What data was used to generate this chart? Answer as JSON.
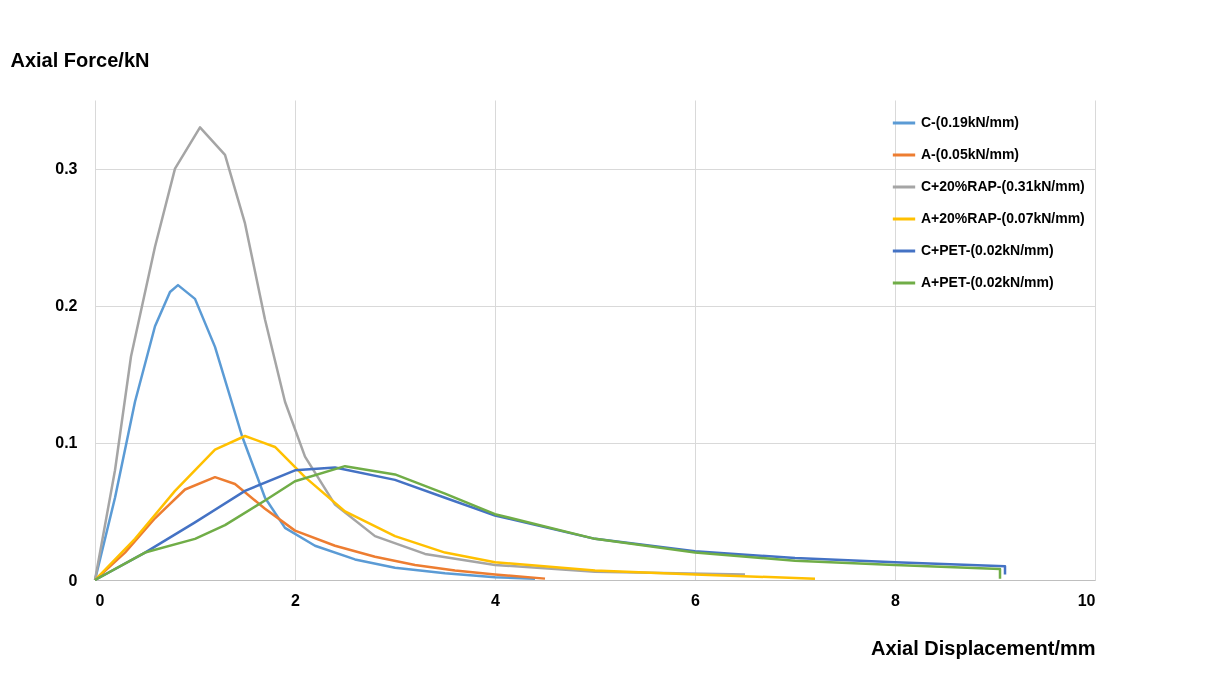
{
  "chart_data": {
    "type": "line",
    "xlabel": "Axial Displacement/mm",
    "ylabel": "Axial Force/kN",
    "xlim": [
      0,
      10
    ],
    "xticks": [
      0,
      2,
      4,
      6,
      8,
      10
    ],
    "ylim": [
      0,
      0.35
    ],
    "yticks": [
      0,
      0.1,
      0.2,
      0.3
    ],
    "grid": true,
    "legend": "top right",
    "marker": "none",
    "line_style": "solid",
    "series": [
      {
        "name": "C-(0.19kN/mm)",
        "color": "#5b9bd5",
        "x": [
          0,
          0.2,
          0.4,
          0.6,
          0.75,
          0.83,
          1.0,
          1.2,
          1.47,
          1.7,
          1.9,
          2.2,
          2.6,
          3.0,
          3.5,
          4.0,
          4.4
        ],
        "values": [
          0,
          0.06,
          0.13,
          0.185,
          0.21,
          0.215,
          0.205,
          0.17,
          0.105,
          0.06,
          0.038,
          0.025,
          0.015,
          0.009,
          0.005,
          0.002,
          0.001
        ]
      },
      {
        "name": "A-(0.05kN/mm)",
        "color": "#ed7d31",
        "x": [
          0,
          0.3,
          0.6,
          0.9,
          1.2,
          1.4,
          1.7,
          2.0,
          2.4,
          2.8,
          3.2,
          3.6,
          4.0,
          4.5
        ],
        "values": [
          0,
          0.02,
          0.045,
          0.066,
          0.075,
          0.07,
          0.052,
          0.036,
          0.025,
          0.017,
          0.011,
          0.007,
          0.004,
          0.001
        ]
      },
      {
        "name": "C+20%RAP-(0.31kN/mm)",
        "color": "#a5a5a5",
        "x": [
          0,
          0.2,
          0.36,
          0.6,
          0.8,
          1.05,
          1.3,
          1.5,
          1.7,
          1.9,
          2.1,
          2.4,
          2.8,
          3.3,
          4.0,
          5.0,
          6.5
        ],
        "values": [
          0,
          0.08,
          0.163,
          0.243,
          0.3,
          0.33,
          0.31,
          0.26,
          0.19,
          0.13,
          0.09,
          0.055,
          0.032,
          0.019,
          0.011,
          0.006,
          0.004
        ]
      },
      {
        "name": "A+20%RAP-(0.07kN/mm)",
        "color": "#ffc000",
        "x": [
          0,
          0.4,
          0.8,
          1.2,
          1.5,
          1.8,
          2.1,
          2.5,
          3.0,
          3.5,
          4.0,
          5.0,
          6.0,
          7.2
        ],
        "values": [
          0,
          0.03,
          0.065,
          0.095,
          0.105,
          0.097,
          0.075,
          0.05,
          0.032,
          0.02,
          0.013,
          0.007,
          0.004,
          0.001
        ]
      },
      {
        "name": "C+PET-(0.02kN/mm)",
        "color": "#4472c4",
        "x": [
          0,
          0.5,
          1.0,
          1.5,
          2.0,
          2.4,
          3.0,
          3.5,
          4.0,
          5.0,
          6.0,
          7.0,
          8.0,
          9.1,
          9.1
        ],
        "values": [
          0,
          0.02,
          0.042,
          0.065,
          0.08,
          0.082,
          0.073,
          0.06,
          0.047,
          0.03,
          0.021,
          0.016,
          0.013,
          0.01,
          0.004
        ]
      },
      {
        "name": "A+PET-(0.02kN/mm)",
        "color": "#70ad47",
        "x": [
          0,
          0.5,
          1.0,
          1.3,
          1.7,
          2.0,
          2.5,
          3.0,
          3.5,
          4.0,
          5.0,
          6.0,
          7.0,
          8.0,
          9.05,
          9.05
        ],
        "values": [
          0,
          0.02,
          0.03,
          0.04,
          0.058,
          0.072,
          0.083,
          0.077,
          0.063,
          0.048,
          0.03,
          0.02,
          0.014,
          0.011,
          0.008,
          0.001
        ]
      }
    ]
  }
}
